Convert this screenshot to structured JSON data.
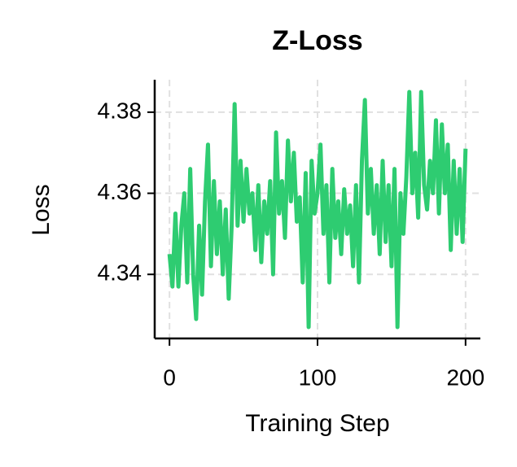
{
  "chart_data": {
    "type": "line",
    "title": "Z-Loss",
    "x_label": "Training Step",
    "y_label": "Loss",
    "x": [
      0,
      2,
      4,
      6,
      8,
      10,
      12,
      14,
      16,
      18,
      20,
      22,
      24,
      26,
      28,
      30,
      32,
      34,
      36,
      38,
      40,
      42,
      44,
      46,
      48,
      50,
      52,
      54,
      56,
      58,
      60,
      62,
      64,
      66,
      68,
      70,
      72,
      74,
      76,
      78,
      80,
      82,
      84,
      86,
      88,
      90,
      92,
      94,
      96,
      98,
      100,
      102,
      104,
      106,
      108,
      110,
      112,
      114,
      116,
      118,
      120,
      122,
      124,
      126,
      128,
      130,
      132,
      134,
      136,
      138,
      140,
      142,
      144,
      146,
      148,
      150,
      152,
      154,
      156,
      158,
      160,
      162,
      164,
      166,
      168,
      170,
      172,
      174,
      176,
      178,
      180,
      182,
      184,
      186,
      188,
      190,
      192,
      194,
      196,
      198,
      200
    ],
    "series": [
      {
        "name": "Z-Loss",
        "color": "#2ecc71",
        "values": [
          4.345,
          4.337,
          4.355,
          4.337,
          4.352,
          4.36,
          4.338,
          4.366,
          4.34,
          4.329,
          4.352,
          4.335,
          4.358,
          4.372,
          4.342,
          4.363,
          4.345,
          4.358,
          4.34,
          4.356,
          4.334,
          4.352,
          4.382,
          4.352,
          4.368,
          4.353,
          4.366,
          4.355,
          4.36,
          4.346,
          4.362,
          4.343,
          4.358,
          4.35,
          4.363,
          4.34,
          4.375,
          4.355,
          4.363,
          4.349,
          4.373,
          4.358,
          4.37,
          4.353,
          4.359,
          4.338,
          4.365,
          4.327,
          4.368,
          4.355,
          4.36,
          4.372,
          4.35,
          4.362,
          4.338,
          4.366,
          4.349,
          4.358,
          4.345,
          4.361,
          4.35,
          4.357,
          4.342,
          4.362,
          4.338,
          4.368,
          4.383,
          4.355,
          4.366,
          4.35,
          4.362,
          4.345,
          4.368,
          4.348,
          4.362,
          4.342,
          4.366,
          4.327,
          4.36,
          4.35,
          4.364,
          4.385,
          4.36,
          4.37,
          4.354,
          4.385,
          4.362,
          4.356,
          4.368,
          4.36,
          4.378,
          4.355,
          4.377,
          4.36,
          4.372,
          4.346,
          4.368,
          4.35,
          4.366,
          4.348,
          4.371
        ]
      }
    ],
    "xlim": [
      -10,
      210
    ],
    "ylim": [
      4.3242,
      4.388
    ],
    "xticks": [
      0,
      100,
      200
    ],
    "yticks": [
      4.34,
      4.36,
      4.38
    ],
    "grid": true
  }
}
